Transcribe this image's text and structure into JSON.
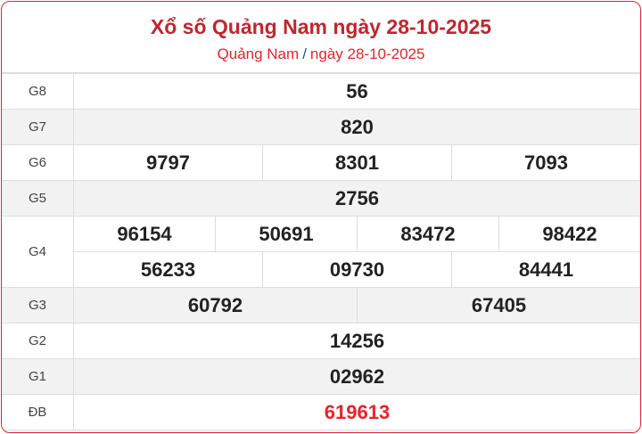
{
  "header": {
    "title": "Xổ số Quảng Nam ngày 28-10-2025",
    "breadcrumb_province": "Quảng Nam",
    "breadcrumb_separator": "/",
    "breadcrumb_date": "ngày 28-10-2025"
  },
  "colors": {
    "accent": "#c0272d",
    "special": "#e8232a",
    "alt_row": "#f2f2f2"
  },
  "prizes": [
    {
      "label": "G8",
      "lines": [
        [
          "56"
        ]
      ]
    },
    {
      "label": "G7",
      "lines": [
        [
          "820"
        ]
      ]
    },
    {
      "label": "G6",
      "lines": [
        [
          "9797",
          "8301",
          "7093"
        ]
      ]
    },
    {
      "label": "G5",
      "lines": [
        [
          "2756"
        ]
      ]
    },
    {
      "label": "G4",
      "lines": [
        [
          "96154",
          "50691",
          "83472",
          "98422"
        ],
        [
          "56233",
          "09730",
          "84441"
        ]
      ]
    },
    {
      "label": "G3",
      "lines": [
        [
          "60792",
          "67405"
        ]
      ]
    },
    {
      "label": "G2",
      "lines": [
        [
          "14256"
        ]
      ]
    },
    {
      "label": "G1",
      "lines": [
        [
          "02962"
        ]
      ]
    },
    {
      "label": "ĐB",
      "lines": [
        [
          "619613"
        ]
      ],
      "special": true
    }
  ]
}
